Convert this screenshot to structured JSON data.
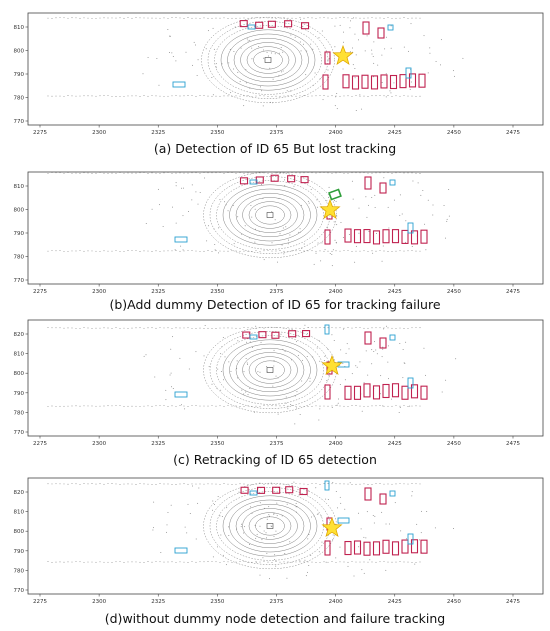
{
  "panels": [
    {
      "caption": "(a) Detection of ID 65 But lost tracking",
      "x_ticks": [
        "2275",
        "2300",
        "2325",
        "2350",
        "2375",
        "2400",
        "2425",
        "2450",
        "2475"
      ],
      "y_ticks": [
        "810",
        "800",
        "790",
        "780",
        "770"
      ],
      "marker": "star"
    },
    {
      "caption": "(b)Add dummy Detection of ID 65 for tracking failure",
      "x_ticks": [
        "2275",
        "2300",
        "2325",
        "2350",
        "2375",
        "2400",
        "2425",
        "2450",
        "2475"
      ],
      "y_ticks": [
        "810",
        "800",
        "790",
        "780",
        "770"
      ],
      "marker": "star",
      "highlight_box_color": "#2e9e3a"
    },
    {
      "caption": "(c) Retracking of ID 65 detection",
      "x_ticks": [
        "2275",
        "2300",
        "2325",
        "2350",
        "2375",
        "2400",
        "2425",
        "2450",
        "2475"
      ],
      "y_ticks": [
        "820",
        "810",
        "800",
        "790",
        "780",
        "770"
      ],
      "marker": "star"
    },
    {
      "caption": "(d)without dummy node detection and failure tracking",
      "x_ticks": [
        "2275",
        "2300",
        "2325",
        "2350",
        "2375",
        "2400",
        "2425",
        "2450",
        "2475"
      ],
      "y_ticks": [
        "820",
        "810",
        "800",
        "790",
        "780",
        "770"
      ],
      "marker": "star"
    }
  ],
  "colors": {
    "detection_box": "#c0214f",
    "track_box": "#2a9fd0",
    "dummy_box": "#2e9e3a",
    "star_fill": "#ffe033",
    "star_stroke": "#e0a800",
    "lidar": "#555555"
  }
}
